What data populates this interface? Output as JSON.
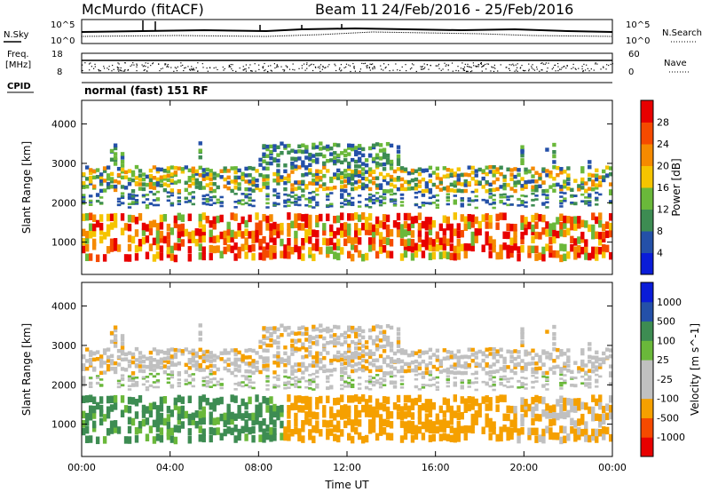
{
  "header": {
    "station": "McMurdo (fitACF)",
    "beam": "Beam 11",
    "date_range": "24/Feb/2016 - 25/Feb/2016"
  },
  "sky_panel": {
    "left_label": "N.Sky",
    "right_label": "N.Search",
    "ticks": [
      "10^5",
      "10^0"
    ]
  },
  "freq_panel": {
    "left_label_1": "Freq.",
    "left_label_2": "[MHz]",
    "right_label": "Nave",
    "left_ticks": [
      "18",
      "8"
    ],
    "right_ticks": [
      "60",
      "0"
    ]
  },
  "cpid_panel": {
    "label": "CPID",
    "program": "normal (fast) 151 RF"
  },
  "colors": {
    "power_scale": [
      "#0a1cd8",
      "#2450a8",
      "#3d8c52",
      "#6ab83a",
      "#f5c400",
      "#f58a00",
      "#f54a00",
      "#e80000"
    ],
    "velocity_scale": [
      "#e80000",
      "#f54a00",
      "#f5a000",
      "#c0c0c0",
      "#c0c0c0",
      "#6ab83a",
      "#3d8c52",
      "#2450a8",
      "#0a1cd8"
    ]
  },
  "chart_data": [
    {
      "type": "heatmap",
      "title": "",
      "xlabel": "",
      "ylabel": "Slant Range [km]",
      "x_ticks": [
        "00:00",
        "04:00",
        "08:00",
        "12:00",
        "16:00",
        "20:00",
        "00:00"
      ],
      "y_ticks": [
        1000,
        2000,
        3000,
        4000
      ],
      "xlim_hours": [
        0,
        24
      ],
      "ylim": [
        180,
        4600
      ],
      "grid": false,
      "colorbar": {
        "label": "Power [dB]",
        "ticks": [
          4,
          8,
          12,
          16,
          20,
          24,
          28
        ],
        "range": [
          0,
          32
        ]
      }
    },
    {
      "type": "heatmap",
      "title": "",
      "xlabel": "Time UT",
      "ylabel": "Slant Range [km]",
      "x_ticks": [
        "00:00",
        "04:00",
        "08:00",
        "12:00",
        "16:00",
        "20:00",
        "00:00"
      ],
      "y_ticks": [
        1000,
        2000,
        3000,
        4000
      ],
      "xlim_hours": [
        0,
        24
      ],
      "ylim": [
        180,
        4600
      ],
      "grid": false,
      "colorbar": {
        "label": "Velocity [m s^-1]",
        "ticks": [
          "1000",
          "500",
          "100",
          "25",
          "-25",
          "-100",
          "-500",
          "-1000"
        ]
      }
    }
  ]
}
